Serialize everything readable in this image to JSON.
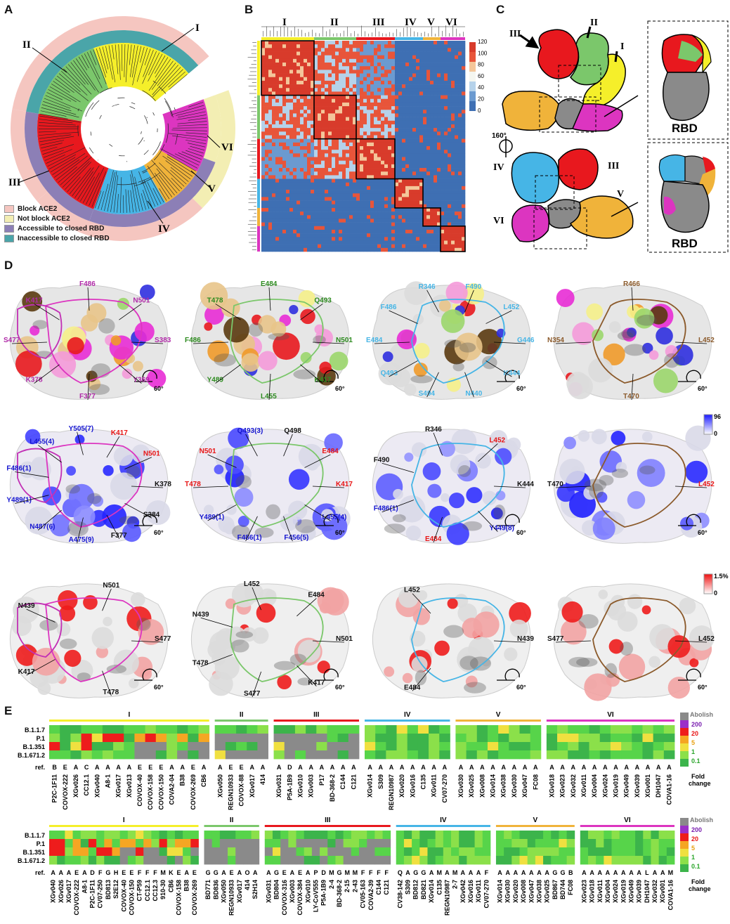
{
  "panels": {
    "A": "A",
    "B": "B",
    "C": "C",
    "D": "D",
    "E": "E"
  },
  "groups": [
    "I",
    "II",
    "III",
    "IV",
    "V",
    "VI"
  ],
  "colors": {
    "I": "#f5ef2a",
    "II": "#7bc76b",
    "III": "#e8181e",
    "IV": "#46b5e6",
    "V": "#f0b33a",
    "VI": "#dc35c0",
    "block": "#f5c6c0",
    "notblock": "#f3eeb3",
    "accessible": "#8c7fb6",
    "inaccessible": "#4aa5a9",
    "gray": "#8a8a8a"
  },
  "legendA": [
    {
      "label": "Block ACE2",
      "color": "#f5c6c0"
    },
    {
      "label": "Not block ACE2",
      "color": "#f3eeb3"
    },
    {
      "label": "Accessible to closed RBD",
      "color": "#8c7fb6"
    },
    {
      "label": "Inaccessible to closed RBD",
      "color": "#4aa5a9"
    }
  ],
  "heatmapB": {
    "ticks": [
      "120",
      "100",
      "80",
      "60",
      "40",
      "20",
      "0"
    ]
  },
  "panelC": {
    "rbd": "RBD",
    "rotation": "160°"
  },
  "panelD": {
    "row1": [
      {
        "labels": [
          "S383",
          "Y369",
          "F377",
          "K378",
          "S477",
          "K417",
          "F486",
          "N501"
        ]
      },
      {
        "labels": [
          "N501",
          "K417",
          "L455",
          "Y489",
          "F486",
          "T478",
          "E484",
          "Q493"
        ]
      },
      {
        "labels": [
          "G446",
          "K444",
          "N440",
          "S494",
          "Q493",
          "E484",
          "F486",
          "R346",
          "F490",
          "L452"
        ]
      },
      {
        "labels": [
          "L452",
          "T470",
          "N354",
          "R466"
        ]
      }
    ],
    "row2": [
      {
        "labels": [
          "K378",
          "S384",
          "F377",
          "A475(9)",
          "N487(6)",
          "Y489(1)",
          "F486(1)",
          "L455(4)",
          "Y505(7)",
          "K417",
          "N501"
        ]
      },
      {
        "labels": [
          "K417",
          "L455(4)",
          "F456(5)",
          "F486(1)",
          "Y489(1)",
          "T478",
          "N501",
          "Q493(3)",
          "Q498",
          "E484"
        ]
      },
      {
        "labels": [
          "K444",
          "Y449(8)",
          "E484",
          "F486(1)",
          "F490",
          "R346",
          "L452"
        ]
      },
      {
        "labels": [
          "L452",
          "T470"
        ]
      }
    ],
    "row3": [
      {
        "labels": [
          "S477",
          "T478",
          "K417",
          "N439",
          "N501"
        ]
      },
      {
        "labels": [
          "N501",
          "K417",
          "S477",
          "T478",
          "N439",
          "L452",
          "E484"
        ]
      },
      {
        "labels": [
          "N439",
          "E484",
          "L452"
        ]
      },
      {
        "labels": [
          "L452",
          "S477"
        ]
      }
    ],
    "rotate": "60°",
    "scale1": {
      "max": "96",
      "min": "0"
    },
    "scale2": {
      "max": "1.5%",
      "min": "0"
    }
  },
  "panelE": {
    "variants": [
      "B.1.1.7",
      "P.1",
      "B.1.351",
      "B.1.671.2"
    ],
    "ref": "ref.",
    "colorbar": {
      "top": "Abolish",
      "ticks": [
        "200",
        "20",
        "5",
        "1",
        "0.1"
      ],
      "title1": "Fold",
      "title2": "change"
    },
    "top_abs": {
      "I": [
        "P2C-1F11",
        "COVOX-222",
        "XGv026",
        "CC12.1",
        "XGv040",
        "A8-1",
        "XGv017",
        "XGv013",
        "COVOX-40",
        "COVOX-158",
        "COVOX-150",
        "COVA2-04",
        "B38",
        "COVOX-269",
        "CB6"
      ],
      "II": [
        "XGv050",
        "REGN10933",
        "COVOX-88",
        "XGv017",
        "414"
      ],
      "III": [
        "XGv031",
        "P5A-1B9",
        "XGv010",
        "XGv003",
        "P17",
        "BD-368-2",
        "C144",
        "C121"
      ],
      "IV": [
        "XGv014",
        "S309",
        "REGN10987",
        "XGv020",
        "XGv016",
        "C135",
        "XGv011",
        "CV07-270"
      ],
      "V": [
        "XGv030",
        "XGv025",
        "XGv008",
        "XGv014",
        "XGv038",
        "XGv030",
        "XGv047",
        "FC08"
      ],
      "VI": [
        "XGv018",
        "XGv023",
        "XGv032",
        "XGv011",
        "XGv004",
        "XGv024",
        "XGv019",
        "XGv049",
        "XGv039",
        "XGv001",
        "DH1047",
        "COVA1-16"
      ]
    },
    "top_ref": {
      "I": [
        "B",
        "E",
        "A",
        "C",
        "A",
        "A",
        "A",
        "A",
        "E",
        "E",
        "E",
        "A",
        "A",
        "E",
        "A"
      ],
      "II": [
        "A",
        "E",
        "E",
        "A",
        "A"
      ],
      "III": [
        "A",
        "D",
        "A",
        "A",
        "A",
        "A",
        "A",
        "A"
      ],
      "IV": [
        "A",
        "A",
        "A",
        "A",
        "A",
        "A",
        "A",
        "A"
      ],
      "V": [
        "A",
        "A",
        "A",
        "A",
        "A",
        "A",
        "A",
        "A"
      ],
      "VI": [
        "A",
        "A",
        "A",
        "A",
        "A",
        "A",
        "A",
        "A",
        "A",
        "A",
        "A",
        "A"
      ]
    },
    "bottom_abs": {
      "I": [
        "XGv040",
        "XGv026",
        "XGv017",
        "COVOX-222",
        "A8-1",
        "P2C-1F11",
        "CV07-250",
        "BD813",
        "S2E12",
        "COVOX-40",
        "COVOX-150",
        "CT-P59",
        "CC12.1",
        "CC12.3",
        "910-30",
        "CB6",
        "COVOX-158",
        "B38",
        "COVOX-269"
      ],
      "II": [
        "BD771",
        "BD836",
        "XGv050",
        "REGN10933",
        "XGv017",
        "414",
        "S2H14"
      ],
      "III": [
        "XGv031",
        "BD804",
        "COVOX-316",
        "XGv003",
        "COVOX-384",
        "XGv010",
        "LY-CoV555",
        "P5A-1B9",
        "2-4",
        "BD-368-2",
        "2-15",
        "2-43",
        "CV05-163",
        "COVA2-39",
        "C144",
        "C121"
      ],
      "IV": [
        "CV38-142",
        "S309",
        "BD812",
        "BD821",
        "XGv014",
        "C135",
        "REGN10987",
        "2-7",
        "XGv042",
        "XGv016",
        "XGv011",
        "CV07-270"
      ],
      "V": [
        "XGv014",
        "XGv030",
        "XGv020",
        "XGv008",
        "XGv047",
        "XGv038",
        "XGv025",
        "BD867",
        "BD744",
        "FC08"
      ],
      "VI": [
        "XGv023",
        "XGv018",
        "XGv011",
        "XGv004",
        "XGv024",
        "XGv019",
        "XGv049",
        "XGv039",
        "DH1047",
        "XGv032",
        "XGv001",
        "COVA1-16"
      ]
    },
    "bottom_ref": {
      "I": [
        "A",
        "A",
        "A",
        "E",
        "A",
        "D",
        "F",
        "G",
        "H",
        "E",
        "E",
        "F",
        "F",
        "F",
        "M",
        "K",
        "E",
        "A",
        "E"
      ],
      "II": [
        "G",
        "G",
        "A",
        "E",
        "A",
        "O",
        "A"
      ],
      "III": [
        "A",
        "G",
        "E",
        "A",
        "E",
        "A",
        "P",
        "D",
        "M",
        "G",
        "M",
        "M",
        "F",
        "F",
        "F",
        "F"
      ],
      "IV": [
        "Q",
        "A",
        "G",
        "G",
        "A",
        "M",
        "A",
        "M",
        "A",
        "A",
        "A",
        "F"
      ],
      "V": [
        "A",
        "A",
        "A",
        "A",
        "A",
        "A",
        "A",
        "G",
        "G",
        "B"
      ],
      "VI": [
        "A",
        "A",
        "A",
        "A",
        "A",
        "A",
        "A",
        "A",
        "L",
        "A",
        "A",
        "M"
      ]
    }
  }
}
